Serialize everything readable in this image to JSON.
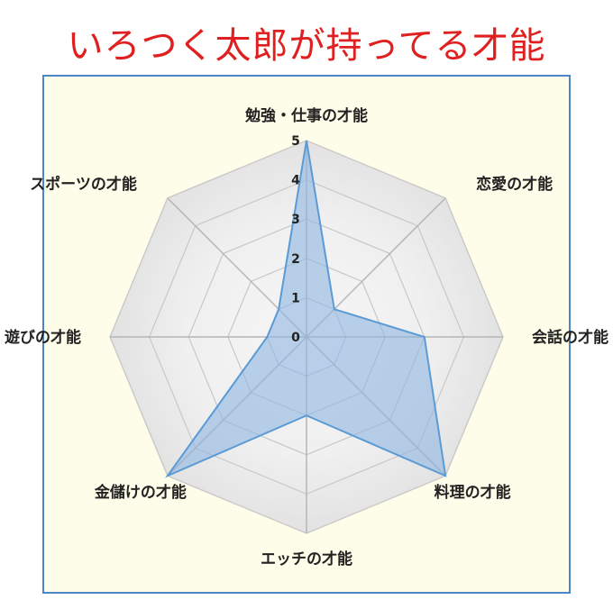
{
  "title": "いろつく太郎が持ってる才能",
  "chart_data": {
    "type": "radar",
    "categories": [
      "勉強・仕事の才能",
      "恋愛の才能",
      "会話の才能",
      "料理の才能",
      "エッチの才能",
      "金儲けの才能",
      "遊びの才能",
      "スポーツの才能"
    ],
    "series": [
      {
        "values": [
          5,
          1,
          3,
          5,
          2,
          5,
          1,
          1
        ]
      }
    ],
    "ticks": [
      "0",
      "1",
      "2",
      "3",
      "4",
      "5"
    ],
    "rlim": [
      0,
      5
    ],
    "colors": {
      "fill": "#8fb6e2",
      "line": "#5b9bd5",
      "ring_outer": "#e2e2e2",
      "ring_inner": "#f5f5f5",
      "grid": "#c8c8c8",
      "spoke": "#b5b5b5"
    }
  }
}
